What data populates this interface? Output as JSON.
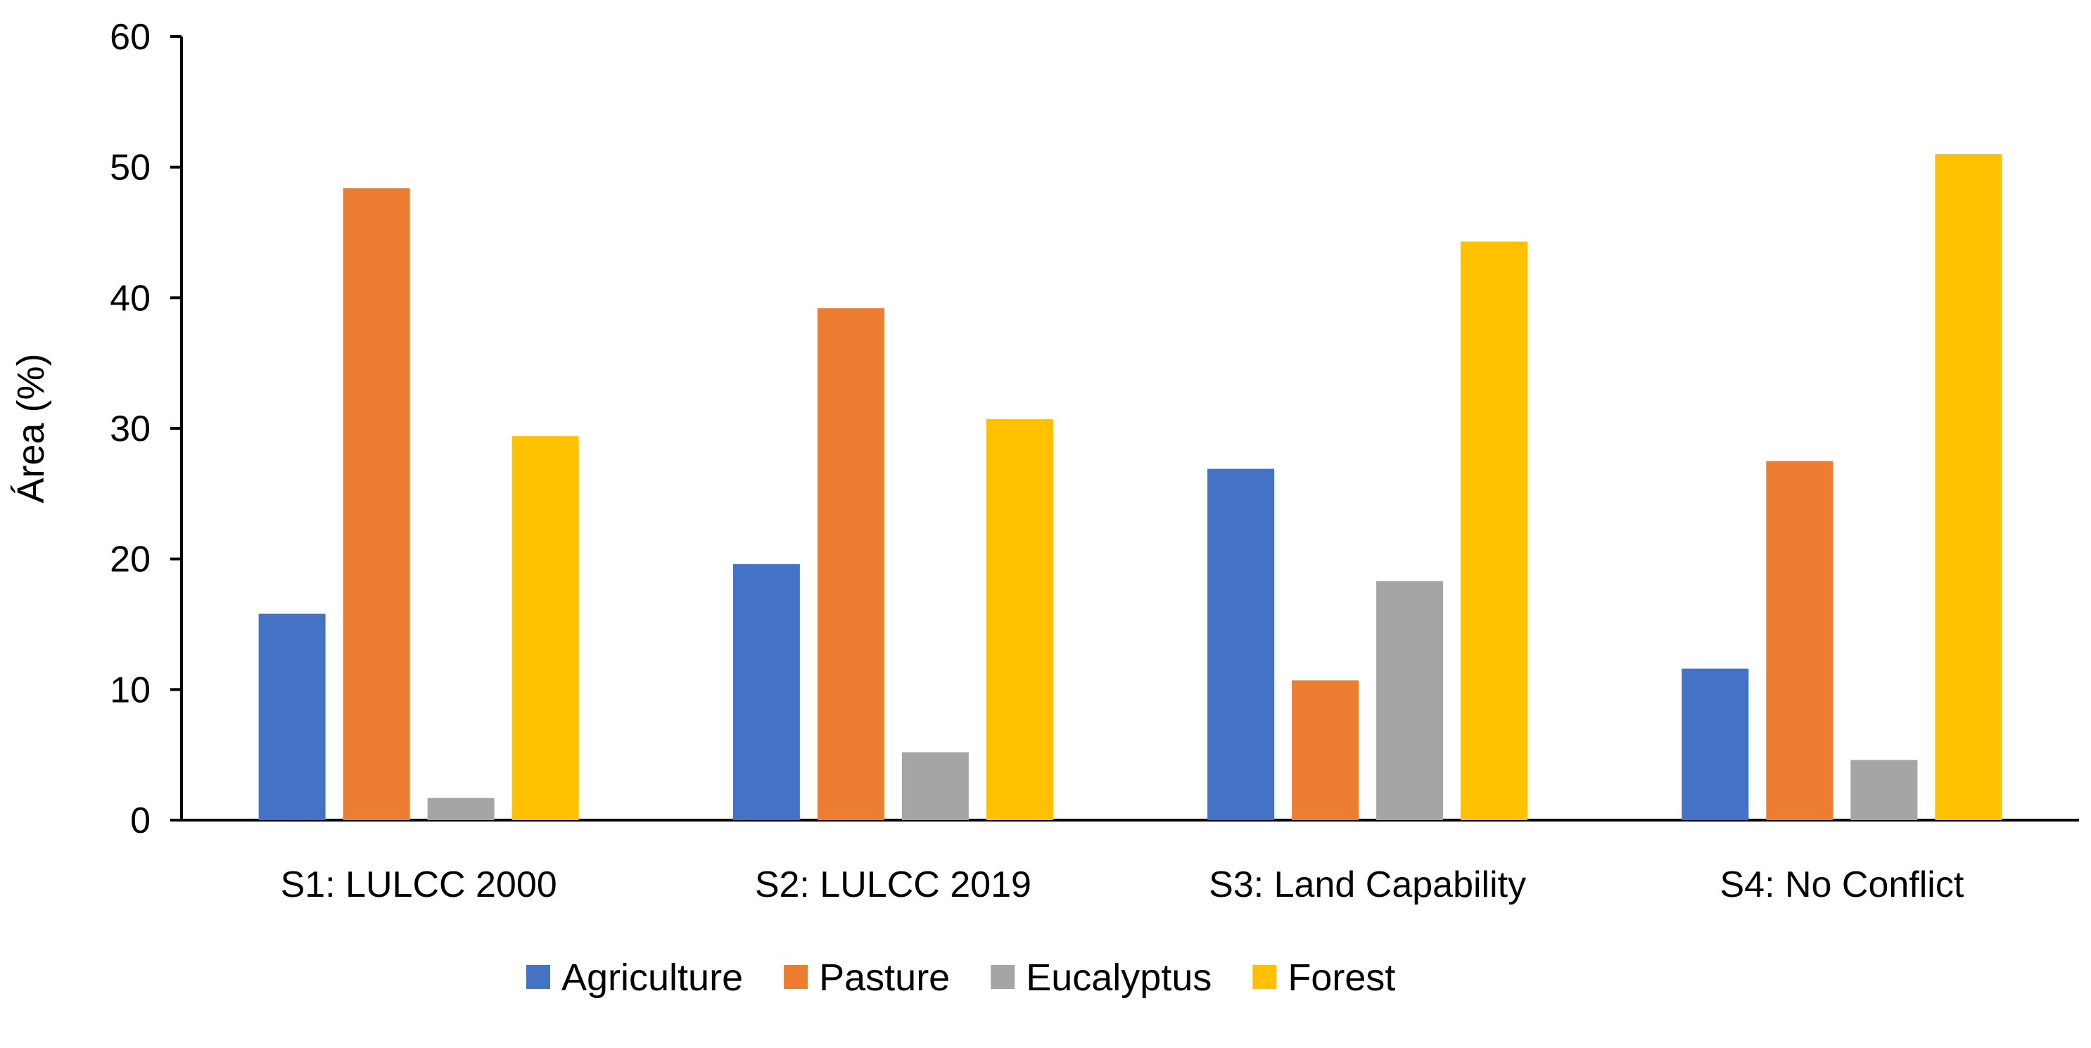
{
  "chart_data": {
    "type": "bar",
    "title": "",
    "xlabel": "",
    "ylabel": "Área (%)",
    "ylim": [
      0,
      60
    ],
    "yticks": [
      0,
      10,
      20,
      30,
      40,
      50,
      60
    ],
    "grid": false,
    "legend_position": "bottom",
    "categories": [
      "S1: LULCC 2000",
      "S2: LULCC 2019",
      "S3: Land Capability",
      "S4: No Conflict"
    ],
    "series": [
      {
        "name": "Agriculture",
        "color": "#4472C4",
        "values": [
          15.8,
          19.6,
          26.9,
          11.6
        ]
      },
      {
        "name": "Pasture",
        "color": "#ED7D31",
        "values": [
          48.4,
          39.2,
          10.7,
          27.5
        ]
      },
      {
        "name": "Eucalyptus",
        "color": "#A5A5A5",
        "values": [
          1.7,
          5.2,
          18.3,
          4.6
        ]
      },
      {
        "name": "Forest",
        "color": "#FFC000",
        "values": [
          29.4,
          30.7,
          44.3,
          51.0
        ]
      }
    ]
  }
}
